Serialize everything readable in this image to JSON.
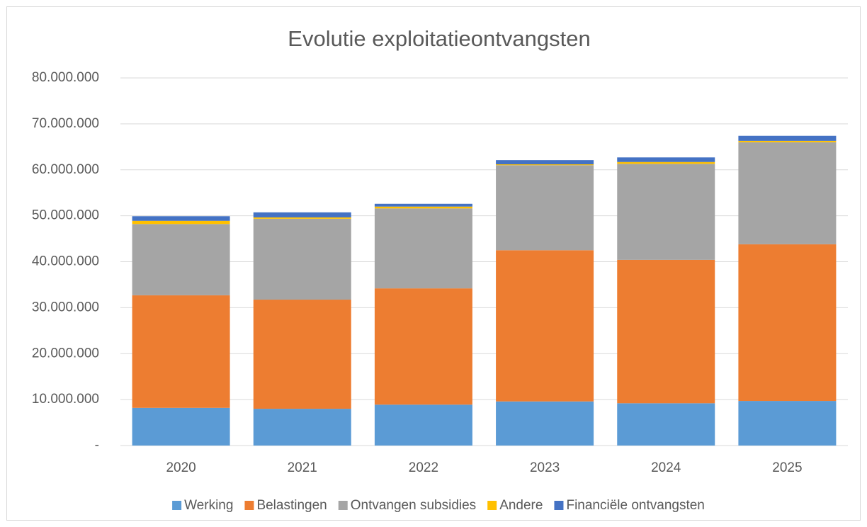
{
  "chart_data": {
    "type": "stacked_bar",
    "title": "Evolutie exploitatieontvangsten",
    "categories": [
      "2020",
      "2021",
      "2022",
      "2023",
      "2024",
      "2025"
    ],
    "series": [
      {
        "name": "Werking",
        "color": "#5b9bd5",
        "values": [
          8200000,
          8000000,
          8900000,
          9600000,
          9200000,
          9700000
        ]
      },
      {
        "name": "Belastingen",
        "color": "#ed7d31",
        "values": [
          24500000,
          23750000,
          25300000,
          32900000,
          31200000,
          34100000
        ]
      },
      {
        "name": "Ontvangen subsidies",
        "color": "#a5a5a5",
        "values": [
          15500000,
          17600000,
          17400000,
          18500000,
          20900000,
          22200000
        ]
      },
      {
        "name": "Andere",
        "color": "#ffc000",
        "values": [
          700000,
          300000,
          400000,
          200000,
          400000,
          300000
        ]
      },
      {
        "name": "Financiële ontvangsten",
        "color": "#4472c4",
        "values": [
          1000000,
          1100000,
          600000,
          900000,
          1000000,
          1100000
        ]
      }
    ],
    "ylim": [
      0,
      80000000
    ],
    "yticks": [
      {
        "value": 0,
        "label": "-"
      },
      {
        "value": 10000000,
        "label": "10.000.000"
      },
      {
        "value": 20000000,
        "label": "20.000.000"
      },
      {
        "value": 30000000,
        "label": "30.000.000"
      },
      {
        "value": 40000000,
        "label": "40.000.000"
      },
      {
        "value": 50000000,
        "label": "50.000.000"
      },
      {
        "value": 60000000,
        "label": "60.000.000"
      },
      {
        "value": 70000000,
        "label": "70.000.000"
      },
      {
        "value": 80000000,
        "label": "80.000.000"
      }
    ],
    "grid": true,
    "legend": "bottom"
  }
}
